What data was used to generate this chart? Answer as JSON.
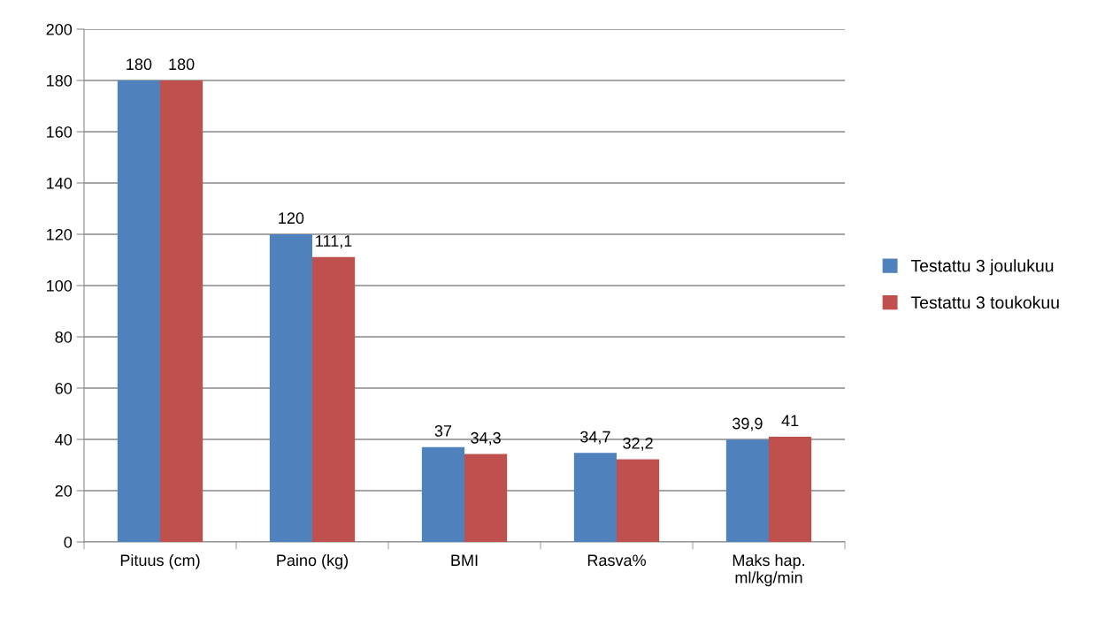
{
  "chart_data": {
    "type": "bar",
    "categories": [
      "Pituus (cm)",
      "Paino (kg)",
      "BMI",
      "Rasva%",
      "Maks hap.\nml/kg/min"
    ],
    "series": [
      {
        "name": "Testattu 3 joulukuu",
        "color": "#4f81bd",
        "values": [
          180,
          120,
          37,
          34.7,
          39.9
        ],
        "value_labels": [
          "180",
          "120",
          "37",
          "34,7",
          "39,9"
        ]
      },
      {
        "name": "Testattu 3 toukokuu",
        "color": "#c0504d",
        "values": [
          180,
          111.1,
          34.3,
          32.2,
          41
        ],
        "value_labels": [
          "180",
          "111,1",
          "34,3",
          "32,2",
          "41"
        ]
      }
    ],
    "ylim": [
      0,
      200
    ],
    "yticks": [
      0,
      20,
      40,
      60,
      80,
      100,
      120,
      140,
      160,
      180,
      200
    ],
    "grid": "y",
    "legend": "right"
  }
}
